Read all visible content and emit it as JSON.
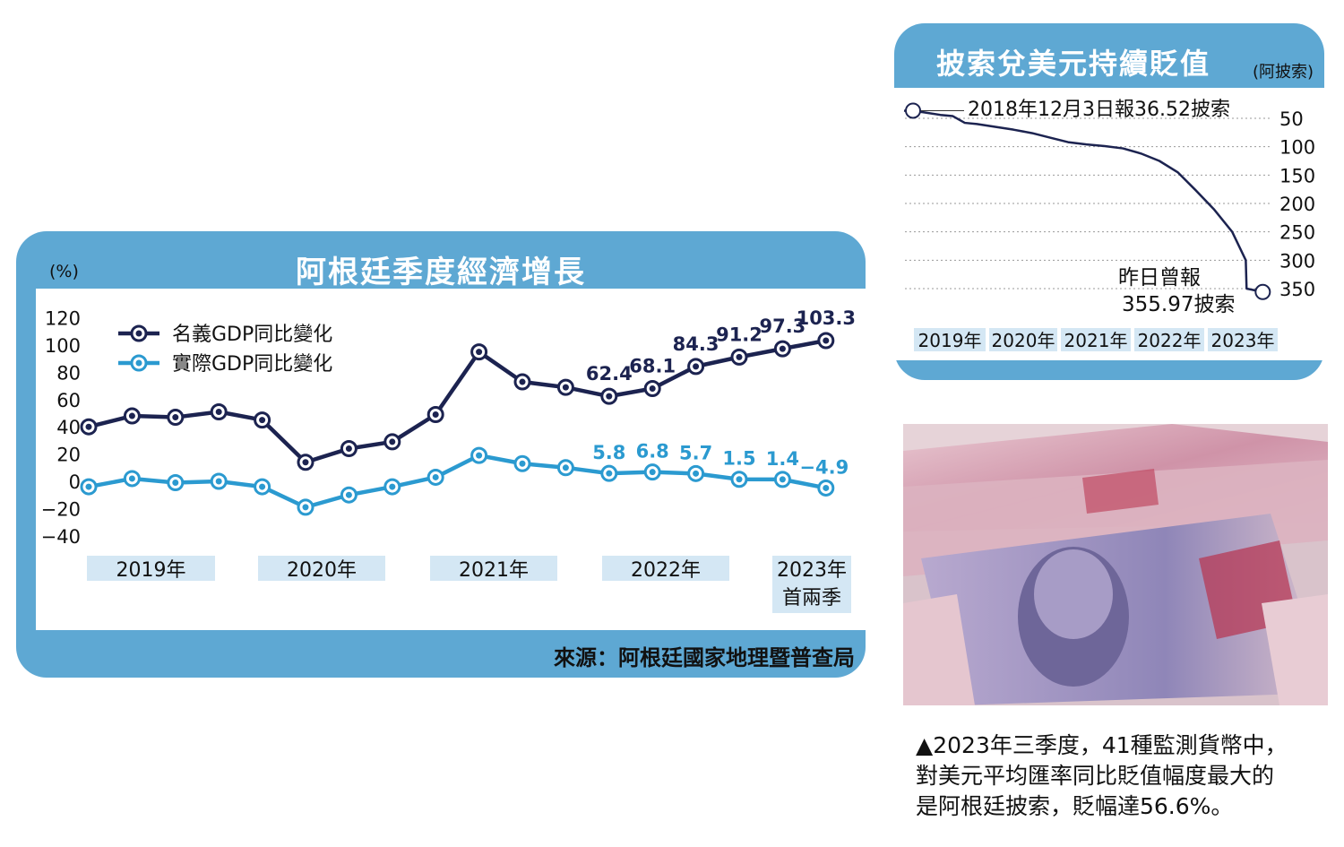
{
  "gdp_panel": {
    "title": "阿根廷季度經濟增長",
    "source": "來源：阿根廷國家地理暨普查局"
  },
  "fx_panel": {
    "title": "披索兌美元持續貶值",
    "unit": "(阿披索)",
    "start_annotation": "2018年12月3日報36.52披索",
    "end_annotation_line1": "昨日曾報",
    "end_annotation_line2": "355.97披索"
  },
  "caption": {
    "line1": "▲2023年三季度，41種監測貨幣中，",
    "line2": "對美元平均匯率同比貶值幅度最大的",
    "line3": "是阿根廷披索，貶幅達56.6%。"
  },
  "photo": {
    "description_icon": "peso-banknotes-photo"
  },
  "colors": {
    "panel": "#5ea8d3",
    "nominal": "#1c2350",
    "real": "#2b9ad0",
    "year_band": "#d4e7f4"
  },
  "chart_data": [
    {
      "type": "line",
      "title": "阿根廷季度經濟增長",
      "ylabel": "(%)",
      "ylim": [
        -40,
        120
      ],
      "yticks": [
        "120",
        "100",
        "80",
        "60",
        "40",
        "20",
        "0",
        "−20",
        "−40"
      ],
      "year_labels": [
        "2019年",
        "2020年",
        "2021年",
        "2022年",
        "2023年"
      ],
      "year_sublabel": "首兩季",
      "grid": false,
      "legend": "top-left",
      "series": [
        {
          "name": "名義GDP同比變化",
          "values": [
            40,
            48,
            47,
            51,
            45,
            14,
            24,
            29,
            49,
            95,
            73,
            69,
            62.4,
            68.1,
            84.3,
            91.2,
            97.3,
            103.3
          ],
          "labels": [
            "",
            "",
            "",
            "",
            "",
            "",
            "",
            "",
            "",
            "",
            "",
            "",
            "62.4",
            "68.1",
            "84.3",
            "91.2",
            "97.3",
            "103.3"
          ]
        },
        {
          "name": "實際GDP同比變化",
          "values": [
            -4,
            2,
            -1,
            0,
            -4,
            -19,
            -10,
            -4,
            3,
            19,
            13,
            10,
            5.8,
            6.8,
            5.7,
            1.5,
            1.4,
            -4.9
          ],
          "labels": [
            "",
            "",
            "",
            "",
            "",
            "",
            "",
            "",
            "",
            "",
            "",
            "",
            "5.8",
            "6.8",
            "5.7",
            "1.5",
            "1.4",
            "−4.9"
          ]
        }
      ]
    },
    {
      "type": "line",
      "title": "披索兌美元持續貶值",
      "ylabel": "(阿披索)",
      "ylim": [
        0,
        380
      ],
      "yticks": [
        "50",
        "100",
        "150",
        "200",
        "250",
        "300",
        "350"
      ],
      "year_labels": [
        "2019年",
        "2020年",
        "2021年",
        "2022年",
        "2023年"
      ],
      "grid": true,
      "series": [
        {
          "x": [
            "2018-12",
            "2019-03",
            "2019-06",
            "2019-08",
            "2019-10",
            "2019-12",
            "2020-03",
            "2020-06",
            "2020-09",
            "2020-12",
            "2021-03",
            "2021-06",
            "2021-09",
            "2021-12",
            "2022-03",
            "2022-06",
            "2022-09",
            "2022-12",
            "2023-03",
            "2023-06",
            "2023-08-10",
            "2023-08-14",
            "2023-11"
          ],
          "values": [
            36.52,
            39,
            44,
            46,
            58,
            60,
            65,
            70,
            76,
            84,
            92,
            96,
            99,
            103,
            112,
            125,
            145,
            177,
            210,
            250,
            300,
            350,
            355.97
          ]
        }
      ]
    }
  ]
}
